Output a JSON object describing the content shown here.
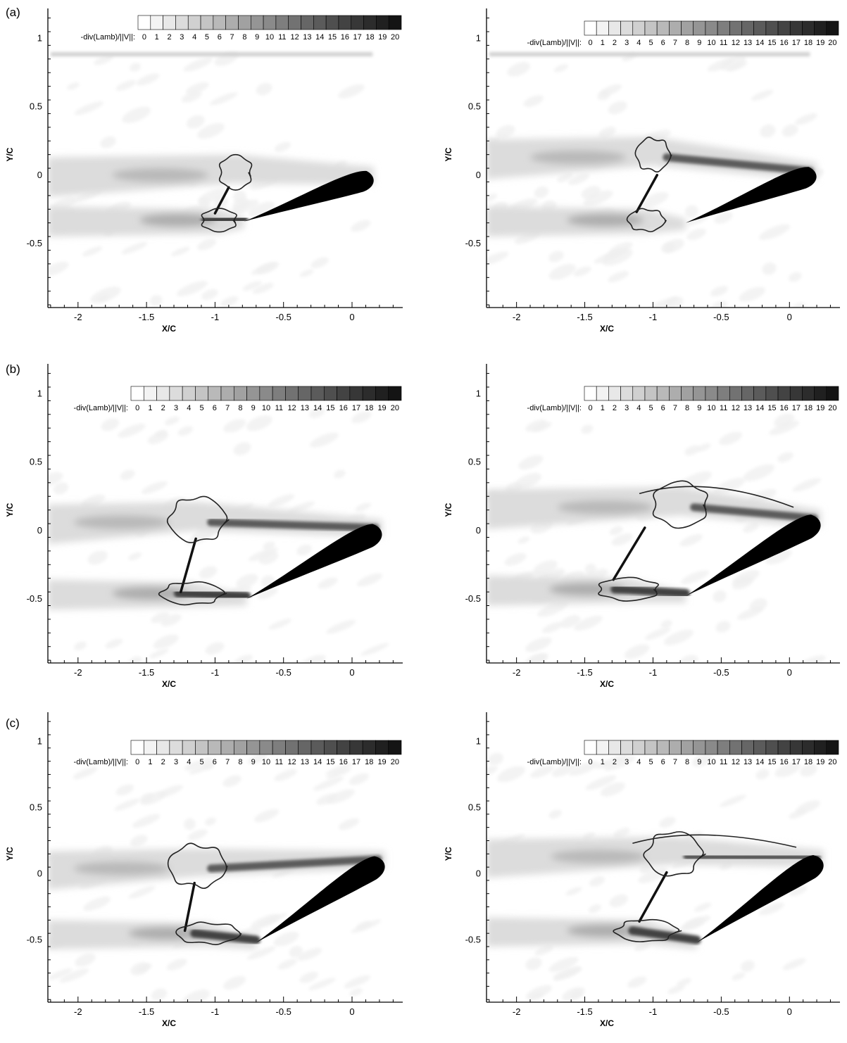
{
  "panel_labels": [
    "(a)",
    "(b)",
    "(c)"
  ],
  "colorbar": {
    "label": "-div(Lamb)/||V||:",
    "levels": [
      0,
      1,
      2,
      3,
      4,
      5,
      6,
      7,
      8,
      9,
      10,
      11,
      12,
      13,
      14,
      15,
      16,
      17,
      18,
      19,
      20
    ],
    "tick_labels": [
      "0",
      "1",
      "2",
      "3",
      "4",
      "5",
      "6",
      "7",
      "8",
      "9",
      "10",
      "11",
      "12",
      "13",
      "14",
      "15",
      "16",
      "17",
      "18",
      "19",
      "20"
    ]
  },
  "chart_data": [
    {
      "type": "heatmap",
      "panel": "(a)",
      "column": "left",
      "xlabel": "X/C",
      "ylabel": "Y/C",
      "xlim": [
        -2.22,
        0.37
      ],
      "ylim": [
        -0.97,
        1.22
      ],
      "x_ticks": [
        "-2",
        "-1.5",
        "-1",
        "-0.5",
        "0"
      ],
      "y_ticks": [
        "1",
        "0.5",
        "0",
        "-0.5"
      ],
      "blade": {
        "x0": -0.79,
        "y0": -0.34,
        "x1": 0.16,
        "y1": -0.04
      },
      "flap": {
        "x0": -1.0,
        "y0": -0.28,
        "x1": -0.9,
        "y1": -0.09
      },
      "upper_vortex": {
        "x": -0.85,
        "y": 0.02
      },
      "lower_vortex": {
        "x": -0.97,
        "y": -0.33
      }
    },
    {
      "type": "heatmap",
      "panel": "(a)",
      "column": "right",
      "xlabel": "X/C",
      "ylabel": "Y/C",
      "xlim": [
        -2.22,
        0.37
      ],
      "ylim": [
        -0.97,
        1.22
      ],
      "x_ticks": [
        "-2",
        "-1.5",
        "-1",
        "-0.5",
        "0"
      ],
      "y_ticks": [
        "1",
        "0.5",
        "0",
        "-0.5"
      ],
      "blade": {
        "x0": -0.76,
        "y0": -0.35,
        "x1": 0.2,
        "y1": -0.01
      },
      "flap": {
        "x0": -1.12,
        "y0": -0.27,
        "x1": -0.97,
        "y1": 0.0
      },
      "upper_vortex": {
        "x": -1.0,
        "y": 0.15
      },
      "lower_vortex": {
        "x": -1.05,
        "y": -0.33
      }
    },
    {
      "type": "heatmap",
      "panel": "(b)",
      "column": "left",
      "xlabel": "X/C",
      "ylabel": "Y/C",
      "xlim": [
        -2.22,
        0.37
      ],
      "ylim": [
        -0.97,
        1.22
      ],
      "x_ticks": [
        "-2",
        "-1.5",
        "-1",
        "-0.5",
        "0"
      ],
      "y_ticks": [
        "1",
        "0.5",
        "0",
        "-0.5"
      ],
      "blade": {
        "x0": -0.77,
        "y0": -0.5,
        "x1": 0.22,
        "y1": -0.02
      },
      "flap": {
        "x0": -1.25,
        "y0": -0.45,
        "x1": -1.14,
        "y1": -0.06
      },
      "upper_vortex": {
        "x": -1.13,
        "y": 0.08
      },
      "lower_vortex": {
        "x": -1.17,
        "y": -0.46
      }
    },
    {
      "type": "heatmap",
      "panel": "(b)",
      "column": "right",
      "xlabel": "X/C",
      "ylabel": "Y/C",
      "xlim": [
        -2.22,
        0.37
      ],
      "ylim": [
        -0.97,
        1.22
      ],
      "x_ticks": [
        "-2",
        "-1.5",
        "-1",
        "-0.5",
        "0"
      ],
      "y_ticks": [
        "1",
        "0.5",
        "0",
        "-0.5"
      ],
      "blade": {
        "x0": -0.76,
        "y0": -0.48,
        "x1": 0.23,
        "y1": 0.05
      },
      "flap": {
        "x0": -1.29,
        "y0": -0.36,
        "x1": -1.06,
        "y1": 0.02
      },
      "upper_vortex": {
        "x": -0.8,
        "y": 0.19
      },
      "lower_vortex": {
        "x": -1.18,
        "y": -0.43
      }
    },
    {
      "type": "heatmap",
      "panel": "(c)",
      "column": "left",
      "xlabel": "X/C",
      "ylabel": "Y/C",
      "xlim": [
        -2.22,
        0.37
      ],
      "ylim": [
        -0.97,
        1.22
      ],
      "x_ticks": [
        "-2",
        "-1.5",
        "-1",
        "-0.5",
        "0"
      ],
      "y_ticks": [
        "1",
        "0.5",
        "0",
        "-0.5"
      ],
      "blade": {
        "x0": -0.7,
        "y0": -0.52,
        "x1": 0.24,
        "y1": 0.07
      },
      "flap": {
        "x0": -1.22,
        "y0": -0.43,
        "x1": -1.15,
        "y1": -0.07
      },
      "upper_vortex": {
        "x": -1.13,
        "y": 0.06
      },
      "lower_vortex": {
        "x": -1.05,
        "y": -0.45
      }
    },
    {
      "type": "heatmap",
      "panel": "(c)",
      "column": "right",
      "xlabel": "X/C",
      "ylabel": "Y/C",
      "xlim": [
        -2.22,
        0.37
      ],
      "ylim": [
        -0.97,
        1.22
      ],
      "x_ticks": [
        "-2",
        "-1.5",
        "-1",
        "-0.5",
        "0"
      ],
      "y_ticks": [
        "1",
        "0.5",
        "0",
        "-0.5"
      ],
      "blade": {
        "x0": -0.68,
        "y0": -0.52,
        "x1": 0.25,
        "y1": 0.08
      },
      "flap": {
        "x0": -1.1,
        "y0": -0.36,
        "x1": -0.9,
        "y1": 0.01
      },
      "upper_vortex": {
        "x": -0.85,
        "y": 0.15
      },
      "lower_vortex": {
        "x": -1.05,
        "y": -0.43
      }
    }
  ]
}
